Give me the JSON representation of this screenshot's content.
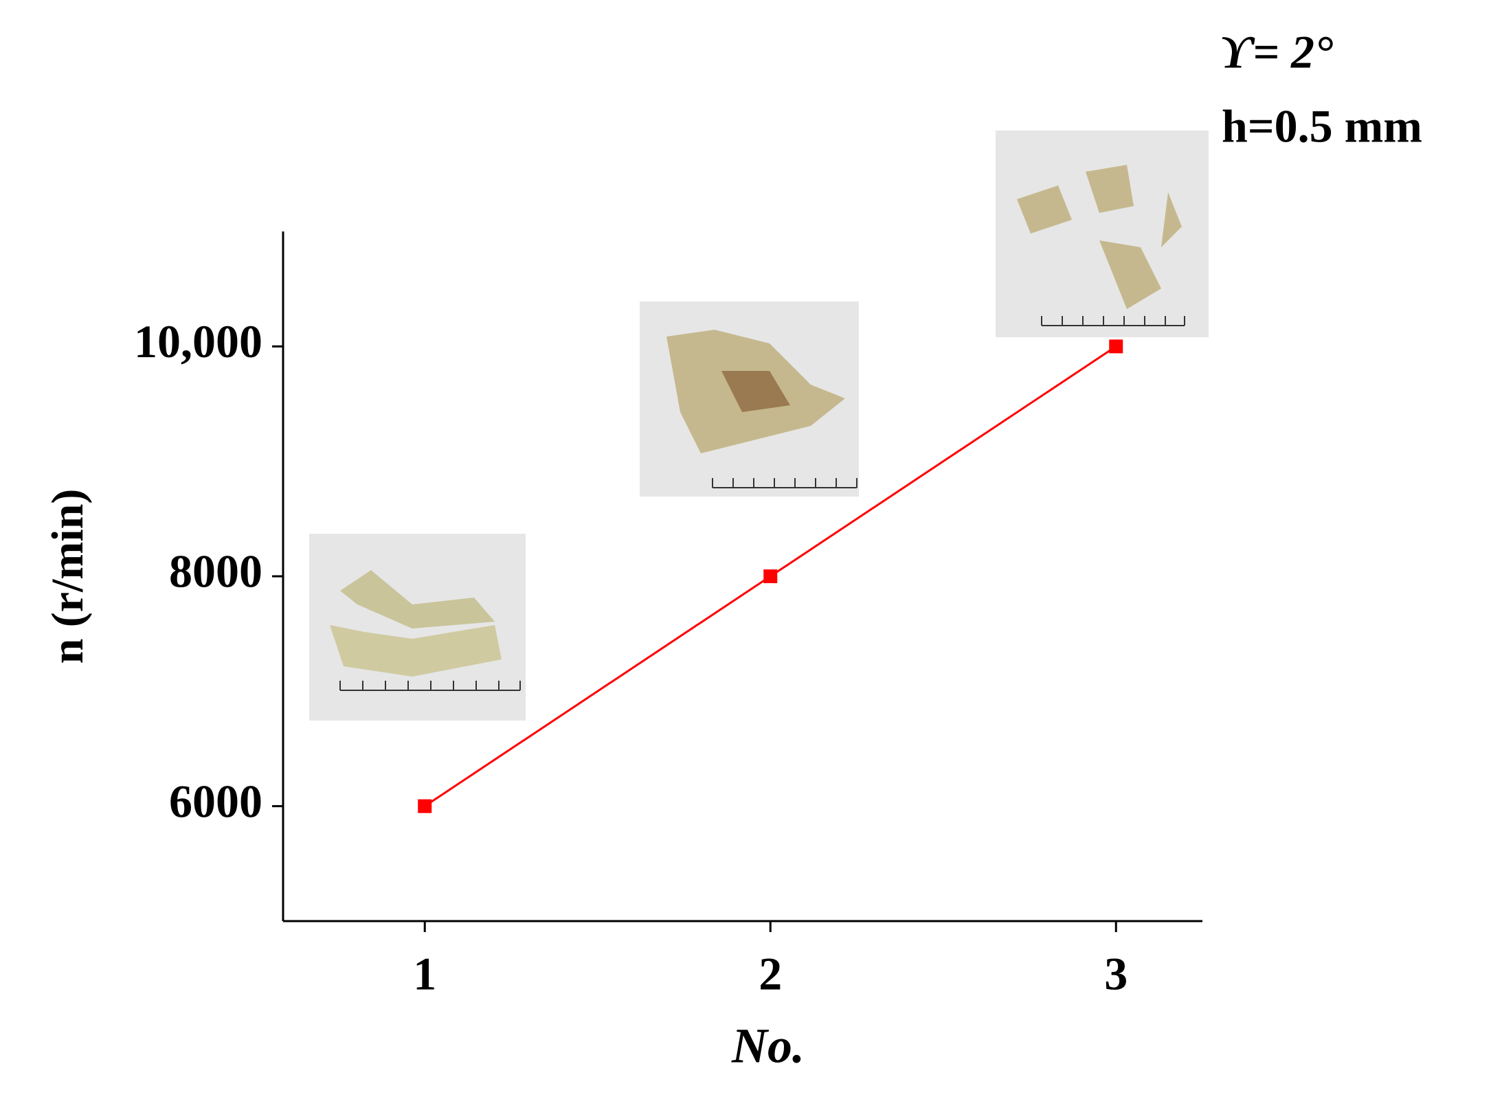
{
  "chart_data": {
    "type": "line",
    "x": [
      1,
      2,
      3
    ],
    "values": [
      6000,
      8000,
      10000
    ],
    "color": "#ff0000",
    "xlim": [
      0.59,
      3.25
    ],
    "xticks": [
      1,
      2,
      3
    ],
    "ylim": [
      5000,
      11000
    ],
    "yticks": [
      6000,
      8000,
      {
        "value": 10000,
        "label": "10,000"
      }
    ],
    "x_label": "No.",
    "y_label": "n (r/min)",
    "annotations": [
      "ϒ= 2°",
      "h=0.5 mm"
    ],
    "grid": false
  }
}
